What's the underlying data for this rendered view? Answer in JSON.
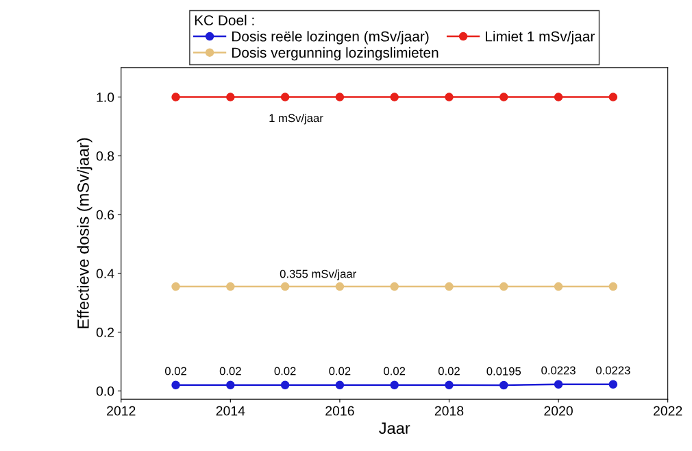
{
  "chart_data": {
    "type": "line",
    "xlabel": "Jaar",
    "ylabel": "Effectieve dosis (mSv/jaar)",
    "legend_title": "KC Doel :",
    "x": [
      2013,
      2014,
      2015,
      2016,
      2017,
      2018,
      2019,
      2020,
      2021
    ],
    "series": [
      {
        "name": "Dosis reële lozingen (mSv/jaar)",
        "color": "#1c1cd6",
        "values": [
          0.02,
          0.02,
          0.02,
          0.02,
          0.02,
          0.02,
          0.0195,
          0.0223,
          0.0223
        ],
        "data_labels": true
      },
      {
        "name": "Dosis vergunning lozingslimieten",
        "color": "#e5c07b",
        "values": [
          0.355,
          0.355,
          0.355,
          0.355,
          0.355,
          0.355,
          0.355,
          0.355,
          0.355
        ]
      },
      {
        "name": "Limiet 1 mSv/jaar",
        "color": "#e8211a",
        "values": [
          1,
          1,
          1,
          1,
          1,
          1,
          1,
          1,
          1
        ]
      }
    ],
    "annotations": [
      "1 mSv/jaar",
      "0.355 mSv/jaar"
    ],
    "xlim": [
      2012,
      2022
    ],
    "xticks": [
      2012,
      2014,
      2016,
      2018,
      2020,
      2022
    ],
    "ylim": [
      -0.028,
      1.1
    ],
    "yticks": [
      {
        "value": 0,
        "label": "0.0"
      },
      {
        "value": 0.2,
        "label": "0.2"
      },
      {
        "value": 0.4,
        "label": "0.4"
      },
      {
        "value": 0.6,
        "label": "0.6"
      },
      {
        "value": 0.8,
        "label": "0.8"
      },
      {
        "value": 1,
        "label": "1.0"
      }
    ],
    "grid": false,
    "legend": "top",
    "marker": "circle",
    "line_style": "solid"
  }
}
